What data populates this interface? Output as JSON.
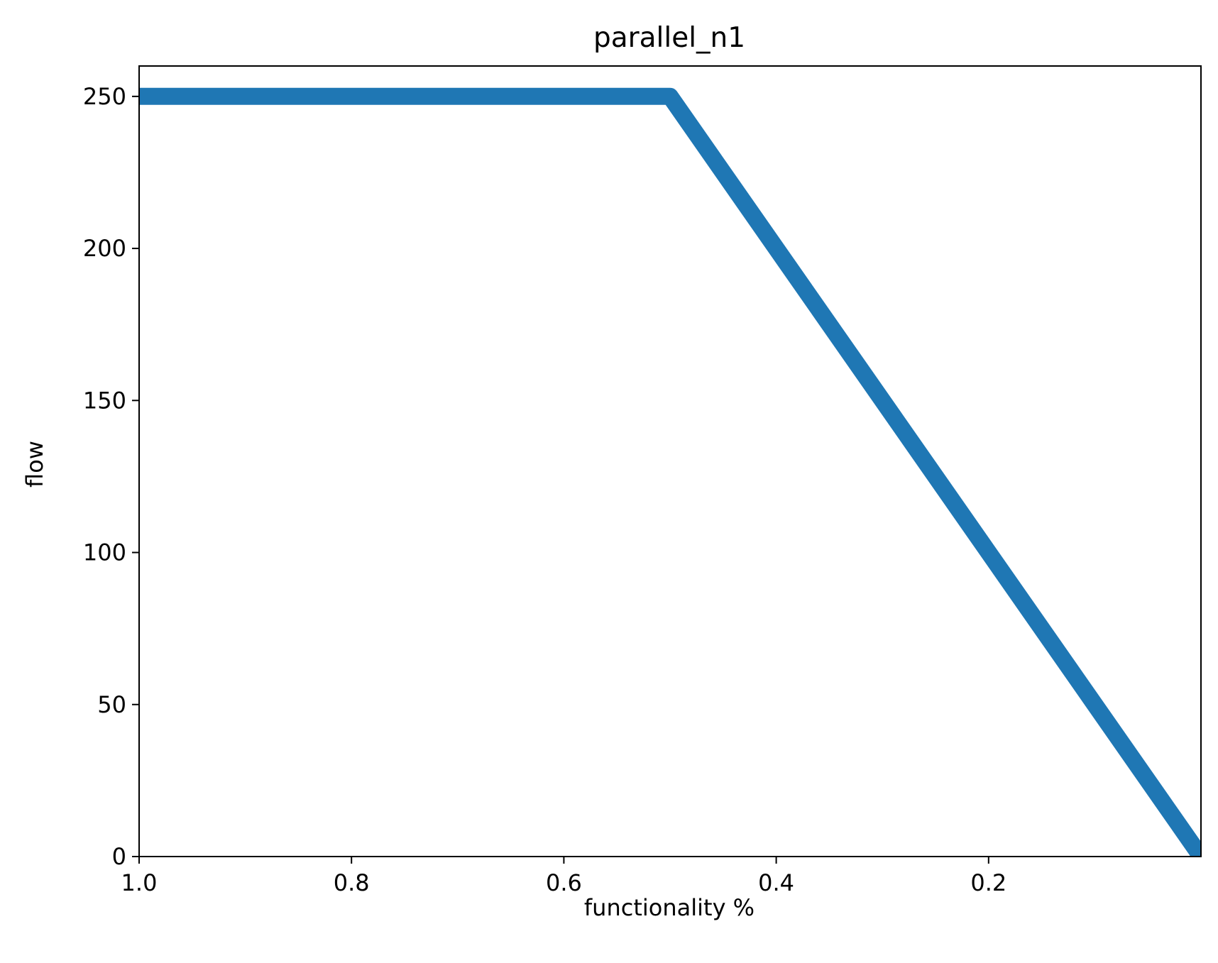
{
  "chart_data": {
    "type": "line",
    "title": "parallel_n1",
    "xlabel": "functionality %",
    "ylabel": "flow",
    "x_inverted": true,
    "xlim": [
      1.0,
      0.0
    ],
    "ylim": [
      0,
      260
    ],
    "xticks": [
      "1.0",
      "0.8",
      "0.6",
      "0.4",
      "0.2"
    ],
    "yticks": [
      "0",
      "50",
      "100",
      "150",
      "200",
      "250"
    ],
    "grid": false,
    "legend": "none",
    "series": [
      {
        "color": "#1f77b4",
        "x": [
          1.0,
          0.5,
          0.0
        ],
        "y": [
          250,
          250,
          0
        ]
      }
    ]
  }
}
